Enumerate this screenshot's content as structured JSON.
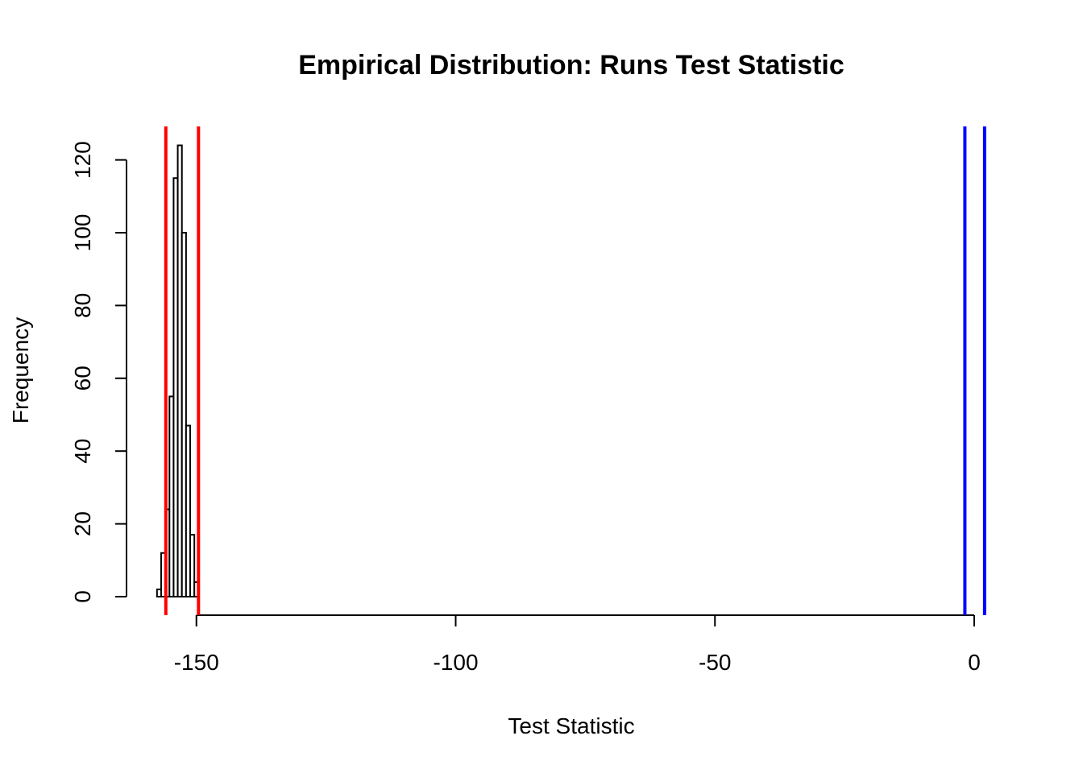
{
  "chart_data": {
    "type": "bar",
    "title": "Empirical Distribution: Runs Test Statistic",
    "xlabel": "Test Statistic",
    "ylabel": "Frequency",
    "xlim": [
      -160,
      0.5
    ],
    "ylim": [
      0,
      125
    ],
    "x_ticks": [
      -150,
      -100,
      -50,
      0
    ],
    "y_ticks": [
      0,
      20,
      40,
      60,
      80,
      100,
      120
    ],
    "bin_width": 0.8,
    "bins": [
      {
        "start": -157.6,
        "end": -156.8,
        "count": 2
      },
      {
        "start": -156.8,
        "end": -156.0,
        "count": 12
      },
      {
        "start": -156.0,
        "end": -155.2,
        "count": 24
      },
      {
        "start": -155.2,
        "end": -154.4,
        "count": 55
      },
      {
        "start": -154.4,
        "end": -153.6,
        "count": 115
      },
      {
        "start": -153.6,
        "end": -152.8,
        "count": 124
      },
      {
        "start": -152.8,
        "end": -152.0,
        "count": 100
      },
      {
        "start": -152.0,
        "end": -151.2,
        "count": 47
      },
      {
        "start": -151.2,
        "end": -150.4,
        "count": 17
      },
      {
        "start": -150.4,
        "end": -149.6,
        "count": 4
      }
    ],
    "vertical_lines": [
      {
        "x": -155.9,
        "color": "#ff0000"
      },
      {
        "x": -149.6,
        "color": "#ff0000"
      },
      {
        "x": -1.8,
        "color": "#0000ff"
      },
      {
        "x": 2.0,
        "color": "#0000ff"
      }
    ]
  }
}
